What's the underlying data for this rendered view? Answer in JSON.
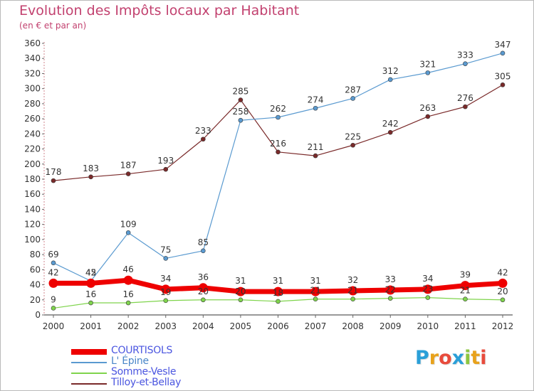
{
  "header": {
    "title": "Evolution des Impôts locaux par Habitant",
    "subtitle": "(en € et par an)"
  },
  "logo": {
    "letters": [
      "P",
      "r",
      "o",
      "x",
      "i",
      "t",
      "i"
    ],
    "colors": [
      "#2a9fd8",
      "#e8a21c",
      "#e84b3c",
      "#2a9fd8",
      "#8dc63f",
      "#e8a21c",
      "#e84b3c"
    ]
  },
  "chart_data": {
    "type": "line",
    "title": "Evolution des Impôts locaux par Habitant",
    "subtitle": "(en € et par an)",
    "xlabel": "",
    "ylabel": "",
    "x": [
      "2000",
      "2001",
      "2002",
      "2003",
      "2004",
      "2005",
      "2006",
      "2007",
      "2008",
      "2009",
      "2010",
      "2011",
      "2012"
    ],
    "ylim": [
      0,
      360
    ],
    "yticks": [
      0,
      20,
      40,
      60,
      80,
      100,
      120,
      140,
      160,
      180,
      200,
      220,
      240,
      260,
      280,
      300,
      320,
      340,
      360
    ],
    "grid": false,
    "legend_position": "bottom-left",
    "series": [
      {
        "name": "COURTISOLS",
        "color": "#ee0000",
        "values": [
          42,
          42,
          46,
          34,
          36,
          31,
          31,
          31,
          32,
          33,
          34,
          39,
          42
        ]
      },
      {
        "name": "L' Épine",
        "color": "#5a9ad0",
        "values": [
          69,
          45,
          109,
          75,
          85,
          258,
          262,
          274,
          287,
          312,
          321,
          333,
          347
        ]
      },
      {
        "name": "Somme-Vesle",
        "color": "#7fd44c",
        "values": [
          9,
          16,
          16,
          19,
          20,
          20,
          18,
          21,
          21,
          22,
          23,
          21,
          20
        ]
      },
      {
        "name": "Tilloy-et-Bellay",
        "color": "#7a2a2a",
        "values": [
          178,
          183,
          187,
          193,
          233,
          285,
          216,
          211,
          225,
          242,
          263,
          276,
          305
        ]
      }
    ]
  }
}
